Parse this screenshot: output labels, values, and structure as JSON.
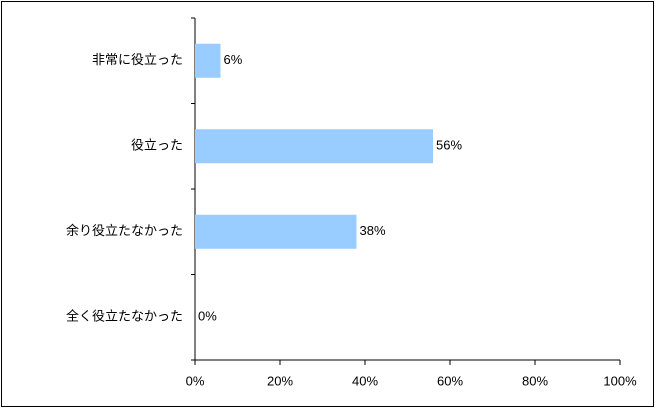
{
  "chart_data": {
    "type": "bar",
    "orientation": "horizontal",
    "categories": [
      "非常に役立った",
      "役立った",
      "余り役立たなかった",
      "全く役立たなかった"
    ],
    "values": [
      6,
      56,
      38,
      0
    ],
    "value_labels": [
      "6%",
      "56%",
      "38%",
      "0%"
    ],
    "color": "#99ccff",
    "xlim": [
      0,
      100
    ],
    "xticks": [
      {
        "value": 0,
        "label": "0%"
      },
      {
        "value": 20,
        "label": "20%"
      },
      {
        "value": 40,
        "label": "40%"
      },
      {
        "value": 60,
        "label": "60%"
      },
      {
        "value": 80,
        "label": "80%"
      },
      {
        "value": 100,
        "label": "100%"
      }
    ],
    "grid": false
  }
}
